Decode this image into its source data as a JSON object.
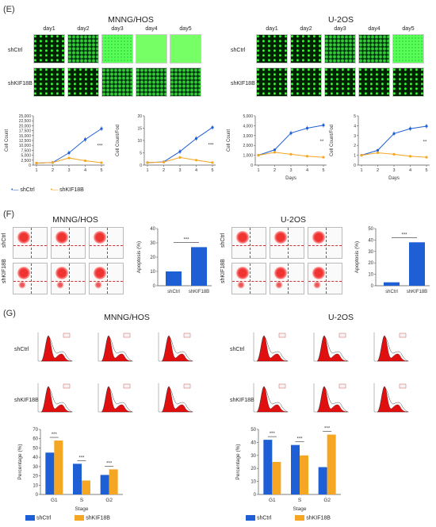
{
  "panel_labels": {
    "e": "(E)",
    "f": "(F)",
    "g": "(G)"
  },
  "cell_lines": {
    "left": "MNNG/HOS",
    "right": "U-2OS"
  },
  "days": [
    "day1",
    "day2",
    "day3",
    "day4",
    "day5"
  ],
  "groups": {
    "ctrl": "shCtrl",
    "kd": "shKIF18B"
  },
  "colors": {
    "ctrl": "#1f5fd6",
    "kd": "#f5a623"
  },
  "chart_data": [
    {
      "id": "hos-count",
      "type": "line",
      "ylabel": "Cell Count",
      "xlabel": "",
      "x": [
        1,
        2,
        3,
        4,
        5
      ],
      "yticks": [
        "0",
        "2,500",
        "5,000",
        "7,500",
        "10,000",
        "12,500",
        "15,000",
        "17,500",
        "20,000",
        "22,500",
        "25,000"
      ],
      "ylim": [
        0,
        25000
      ],
      "series": [
        {
          "name": "shCtrl",
          "values": [
            1000,
            1300,
            6200,
            13000,
            18500
          ]
        },
        {
          "name": "shKIF18B",
          "values": [
            1000,
            1300,
            3600,
            2200,
            1200
          ]
        }
      ],
      "annotation": "***"
    },
    {
      "id": "hos-fold",
      "type": "line",
      "ylabel": "Cell Count/Fod",
      "xlabel": "",
      "x": [
        1,
        2,
        3,
        4,
        5
      ],
      "yticks": [
        "0",
        "5",
        "10",
        "15",
        "20"
      ],
      "ylim": [
        0,
        20
      ],
      "series": [
        {
          "name": "shCtrl",
          "values": [
            1,
            1.3,
            5.5,
            10.8,
            15.3
          ]
        },
        {
          "name": "shKIF18B",
          "values": [
            1,
            1.2,
            3.1,
            2.0,
            1.0
          ]
        }
      ],
      "annotation": "***"
    },
    {
      "id": "u2os-count",
      "type": "line",
      "ylabel": "Cell Count",
      "xlabel": "Days",
      "x": [
        1,
        2,
        3,
        4,
        5
      ],
      "yticks": [
        "0",
        "1,000",
        "2,000",
        "3,000",
        "4,000",
        "5,000"
      ],
      "ylim": [
        0,
        5000
      ],
      "series": [
        {
          "name": "shCtrl",
          "values": [
            1000,
            1550,
            3250,
            3750,
            4050
          ]
        },
        {
          "name": "shKIF18B",
          "values": [
            1000,
            1300,
            1100,
            900,
            800
          ]
        }
      ],
      "annotation": "**"
    },
    {
      "id": "u2os-fold",
      "type": "line",
      "ylabel": "Cell Count/Fod",
      "xlabel": "Days",
      "x": [
        1,
        2,
        3,
        4,
        5
      ],
      "yticks": [
        "0",
        "1",
        "2",
        "3",
        "4",
        "5"
      ],
      "ylim": [
        0,
        5
      ],
      "series": [
        {
          "name": "shCtrl",
          "values": [
            1,
            1.5,
            3.2,
            3.7,
            3.95
          ]
        },
        {
          "name": "shKIF18B",
          "values": [
            1,
            1.25,
            1.1,
            0.9,
            0.8
          ]
        }
      ],
      "annotation": "**"
    },
    {
      "id": "hos-apop",
      "type": "bar",
      "ylabel": "Apoptosis (%)",
      "categories": [
        "shCtrl",
        "shKIF18B"
      ],
      "values": [
        10,
        27
      ],
      "ylim": [
        0,
        40
      ],
      "yticks": [
        "0",
        "10",
        "20",
        "30",
        "40"
      ],
      "annotation": "***"
    },
    {
      "id": "u2os-apop",
      "type": "bar",
      "ylabel": "Apoptosis (%)",
      "categories": [
        "shCtrl",
        "shKIF18B"
      ],
      "values": [
        3,
        38
      ],
      "ylim": [
        0,
        50
      ],
      "yticks": [
        "0",
        "10",
        "20",
        "30",
        "40",
        "50"
      ],
      "annotation": "***"
    },
    {
      "id": "hos-cycle",
      "type": "bar",
      "ylabel": "Percentage (%)",
      "xlabel": "Stage",
      "categories": [
        "G1",
        "S",
        "G2"
      ],
      "series": [
        {
          "name": "shCtrl",
          "values": [
            45,
            33,
            21
          ]
        },
        {
          "name": "shKIF18B",
          "values": [
            58,
            15,
            27
          ]
        }
      ],
      "ylim": [
        0,
        70
      ],
      "yticks": [
        "0",
        "10",
        "20",
        "30",
        "40",
        "50",
        "60",
        "70"
      ],
      "annotations": [
        "***",
        "***",
        "***"
      ]
    },
    {
      "id": "u2os-cycle",
      "type": "bar",
      "ylabel": "Percentage (%)",
      "xlabel": "Stage",
      "categories": [
        "G1",
        "S",
        "G2"
      ],
      "series": [
        {
          "name": "shCtrl",
          "values": [
            42,
            38,
            21
          ]
        },
        {
          "name": "shKIF18B",
          "values": [
            25,
            30,
            46
          ]
        }
      ],
      "ylim": [
        0,
        50
      ],
      "yticks": [
        "0",
        "10",
        "20",
        "30",
        "40",
        "50"
      ],
      "annotations": [
        "***",
        "***",
        "***"
      ]
    }
  ],
  "legend_days": "Days",
  "legend_stage": "Stage"
}
